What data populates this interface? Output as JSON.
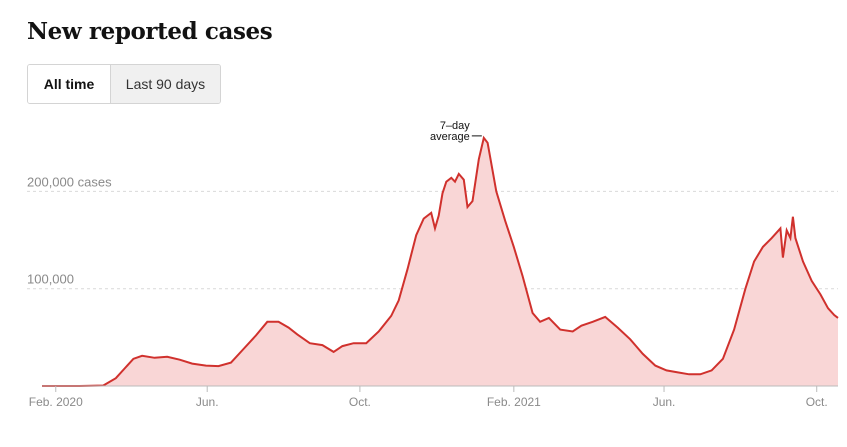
{
  "page": {
    "title": "New reported cases",
    "toggle": {
      "active_label": "All time",
      "inactive_label": "Last 90 days"
    }
  },
  "colors": {
    "line": "#d0312d",
    "fill": "#f9d6d6",
    "grid": "#d9d9d9",
    "axis": "#bbbbbb",
    "tick_text": "#8a8a8a"
  },
  "chart_data": {
    "type": "area",
    "title": "New reported cases",
    "series_label": "7-day average",
    "annotation": {
      "line1": "7–day",
      "line2": "average"
    },
    "xlabel": "",
    "ylabel": "",
    "x_range": [
      "2020-01-21",
      "2021-10-18"
    ],
    "ylim": [
      0,
      260000
    ],
    "grid": true,
    "y_ticks": [
      {
        "value": 200000,
        "label": "200,000 cases"
      },
      {
        "value": 100000,
        "label": "100,000"
      }
    ],
    "x_ticks": [
      {
        "date": "2020-02-01",
        "label": "Feb. 2020"
      },
      {
        "date": "2020-06-01",
        "label": "Jun."
      },
      {
        "date": "2020-10-01",
        "label": "Oct."
      },
      {
        "date": "2021-02-01",
        "label": "Feb. 2021"
      },
      {
        "date": "2021-06-01",
        "label": "Jun."
      },
      {
        "date": "2021-10-01",
        "label": "Oct."
      }
    ],
    "points": [
      [
        "2020-01-21",
        0
      ],
      [
        "2020-02-20",
        0
      ],
      [
        "2020-03-10",
        500
      ],
      [
        "2020-03-20",
        8000
      ],
      [
        "2020-03-27",
        18000
      ],
      [
        "2020-04-03",
        28000
      ],
      [
        "2020-04-10",
        31000
      ],
      [
        "2020-04-20",
        29000
      ],
      [
        "2020-04-30",
        30000
      ],
      [
        "2020-05-10",
        27000
      ],
      [
        "2020-05-20",
        23000
      ],
      [
        "2020-05-31",
        21000
      ],
      [
        "2020-06-10",
        20500
      ],
      [
        "2020-06-20",
        24000
      ],
      [
        "2020-06-30",
        38000
      ],
      [
        "2020-07-10",
        52000
      ],
      [
        "2020-07-19",
        66000
      ],
      [
        "2020-07-28",
        66000
      ],
      [
        "2020-08-05",
        60000
      ],
      [
        "2020-08-12",
        53000
      ],
      [
        "2020-08-22",
        44000
      ],
      [
        "2020-09-01",
        42000
      ],
      [
        "2020-09-10",
        35000
      ],
      [
        "2020-09-17",
        41000
      ],
      [
        "2020-09-26",
        44000
      ],
      [
        "2020-10-06",
        44000
      ],
      [
        "2020-10-16",
        56000
      ],
      [
        "2020-10-26",
        72000
      ],
      [
        "2020-11-01",
        88000
      ],
      [
        "2020-11-08",
        120000
      ],
      [
        "2020-11-15",
        155000
      ],
      [
        "2020-11-21",
        172000
      ],
      [
        "2020-11-27",
        178000
      ],
      [
        "2020-11-30",
        162000
      ],
      [
        "2020-12-03",
        175000
      ],
      [
        "2020-12-06",
        198000
      ],
      [
        "2020-12-09",
        210000
      ],
      [
        "2020-12-13",
        214000
      ],
      [
        "2020-12-16",
        210000
      ],
      [
        "2020-12-19",
        218000
      ],
      [
        "2020-12-23",
        212000
      ],
      [
        "2020-12-26",
        184000
      ],
      [
        "2020-12-30",
        190000
      ],
      [
        "2021-01-04",
        233000
      ],
      [
        "2021-01-08",
        255000
      ],
      [
        "2021-01-11",
        250000
      ],
      [
        "2021-01-18",
        200000
      ],
      [
        "2021-01-25",
        170000
      ],
      [
        "2021-02-01",
        143000
      ],
      [
        "2021-02-08",
        113000
      ],
      [
        "2021-02-16",
        75000
      ],
      [
        "2021-02-22",
        66000
      ],
      [
        "2021-03-01",
        70000
      ],
      [
        "2021-03-10",
        58000
      ],
      [
        "2021-03-20",
        56000
      ],
      [
        "2021-03-27",
        62000
      ],
      [
        "2021-04-05",
        66000
      ],
      [
        "2021-04-15",
        71000
      ],
      [
        "2021-04-25",
        60000
      ],
      [
        "2021-05-05",
        48000
      ],
      [
        "2021-05-15",
        33000
      ],
      [
        "2021-05-25",
        21000
      ],
      [
        "2021-06-03",
        16000
      ],
      [
        "2021-06-12",
        14000
      ],
      [
        "2021-06-21",
        12000
      ],
      [
        "2021-06-30",
        12000
      ],
      [
        "2021-07-09",
        16000
      ],
      [
        "2021-07-18",
        28000
      ],
      [
        "2021-07-27",
        58000
      ],
      [
        "2021-08-05",
        100000
      ],
      [
        "2021-08-12",
        128000
      ],
      [
        "2021-08-19",
        143000
      ],
      [
        "2021-08-26",
        152000
      ],
      [
        "2021-09-02",
        162000
      ],
      [
        "2021-09-04",
        132000
      ],
      [
        "2021-09-07",
        160000
      ],
      [
        "2021-09-10",
        152000
      ],
      [
        "2021-09-12",
        174000
      ],
      [
        "2021-09-14",
        152000
      ],
      [
        "2021-09-20",
        128000
      ],
      [
        "2021-09-27",
        108000
      ],
      [
        "2021-10-04",
        94000
      ],
      [
        "2021-10-10",
        80000
      ],
      [
        "2021-10-15",
        73000
      ],
      [
        "2021-10-18",
        70000
      ]
    ]
  }
}
